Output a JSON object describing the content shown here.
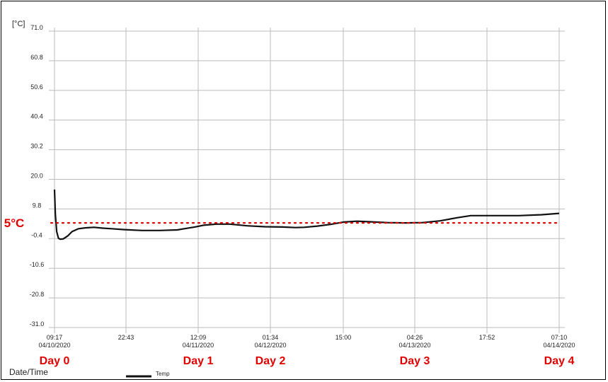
{
  "chart_data": {
    "type": "line",
    "ylabel": "[°C]",
    "xlabel": "Date/Time",
    "ylim": [
      -31.0,
      71.0
    ],
    "y_ticks": [
      "71.0",
      "60.8",
      "50.6",
      "40.4",
      "30.2",
      "20.0",
      "9.8",
      "-0.4",
      "-10.6",
      "-20.8",
      "-31.0"
    ],
    "x_ticks": [
      {
        "time": "09:17",
        "date": "04/10/2020"
      },
      {
        "time": "22:43",
        "date": ""
      },
      {
        "time": "12:09",
        "date": "04/11/2020"
      },
      {
        "time": "01:34",
        "date": "04/12/2020"
      },
      {
        "time": "15:00",
        "date": ""
      },
      {
        "time": "04:26",
        "date": "04/13/2020"
      },
      {
        "time": "17:52",
        "date": ""
      },
      {
        "time": "07:10",
        "date": "04/14/2020"
      }
    ],
    "grid": true,
    "legend_position": "bottom",
    "series": [
      {
        "name": "Temp",
        "color": "#111111",
        "points": [
          [
            0,
            16.5
          ],
          [
            0.2,
            8.0
          ],
          [
            0.5,
            2.0
          ],
          [
            0.9,
            -0.3
          ],
          [
            1.3,
            -0.6
          ],
          [
            2.0,
            -0.5
          ],
          [
            3.0,
            0.5
          ],
          [
            4.0,
            2.0
          ],
          [
            5.5,
            3.0
          ],
          [
            7.0,
            3.3
          ],
          [
            9.0,
            3.5
          ],
          [
            11.0,
            3.2
          ],
          [
            13.0,
            3.0
          ],
          [
            16.0,
            2.7
          ],
          [
            20.0,
            2.4
          ],
          [
            24.0,
            2.4
          ],
          [
            28.0,
            2.6
          ],
          [
            30.0,
            3.1
          ],
          [
            32.0,
            3.6
          ],
          [
            34.0,
            4.2
          ],
          [
            37.0,
            4.6
          ],
          [
            40.0,
            4.6
          ],
          [
            44.0,
            4.0
          ],
          [
            48.0,
            3.7
          ],
          [
            52.0,
            3.6
          ],
          [
            55.0,
            3.4
          ],
          [
            57.0,
            3.5
          ],
          [
            60.0,
            3.9
          ],
          [
            63.0,
            4.5
          ],
          [
            66.0,
            5.3
          ],
          [
            69.0,
            5.6
          ],
          [
            72.0,
            5.4
          ],
          [
            76.0,
            5.1
          ],
          [
            80.0,
            5.0
          ],
          [
            84.0,
            5.1
          ],
          [
            88.0,
            5.7
          ],
          [
            92.0,
            6.8
          ],
          [
            95.0,
            7.5
          ],
          [
            100.0,
            7.5
          ],
          [
            106.0,
            7.5
          ],
          [
            111.0,
            7.8
          ],
          [
            115.2,
            8.3
          ]
        ]
      }
    ],
    "annotations": {
      "reference_line": {
        "value": 5,
        "label": "5°C",
        "color": "#e00000"
      },
      "day_labels": [
        {
          "label": "Day 0",
          "tick": 0
        },
        {
          "label": "Day 1",
          "tick": 2
        },
        {
          "label": "Day 2",
          "tick": 3
        },
        {
          "label": "Day 3",
          "tick": 5
        },
        {
          "label": "Day 4",
          "tick": 7
        }
      ]
    }
  }
}
